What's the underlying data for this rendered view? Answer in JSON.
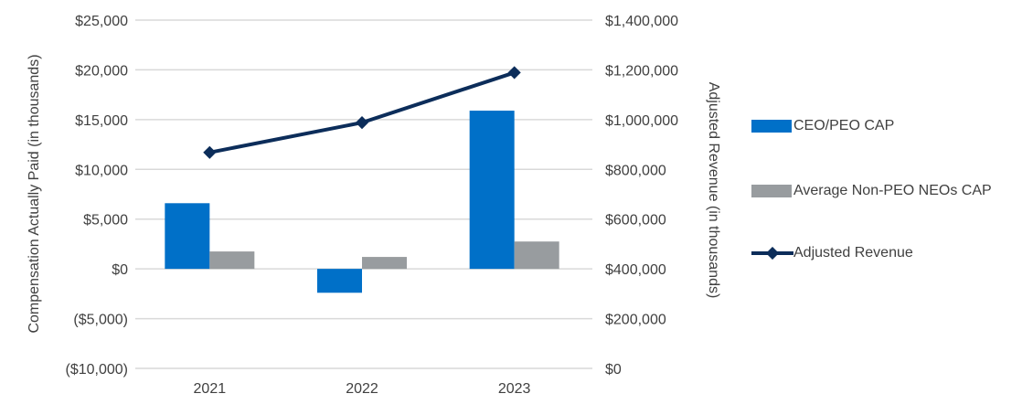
{
  "chart_data": {
    "type": "bar",
    "categories": [
      "2021",
      "2022",
      "2023"
    ],
    "series": [
      {
        "name": "CEO/PEO CAP",
        "kind": "bar",
        "axis": "left",
        "color": "#0070c8",
        "values": [
          6600,
          -2400,
          15900
        ]
      },
      {
        "name": "Average Non-PEO NEOs CAP",
        "kind": "bar",
        "axis": "left",
        "color": "#989c9f",
        "values": [
          1750,
          1200,
          2750
        ]
      },
      {
        "name": "Adjusted Revenue",
        "kind": "line",
        "marker": "diamond",
        "axis": "right",
        "color": "#0c2d5a",
        "values": [
          868000,
          988000,
          1189000
        ]
      }
    ],
    "ylabel": "Compensation Actually Paid (in thousands)",
    "y2label": "Adjusted Revenue (in thousands)",
    "ylim": [
      -10000,
      25000
    ],
    "y2lim": [
      0,
      1400000
    ],
    "yticks": [
      "($10,000)",
      "($5,000)",
      "$0",
      "$5,000",
      "$10,000",
      "$15,000",
      "$20,000",
      "$25,000"
    ],
    "y2ticks": [
      "$0",
      "$200,000",
      "$400,000",
      "$600,000",
      "$800,000",
      "$1,000,000",
      "$1,200,000",
      "$1,400,000"
    ],
    "grid": true,
    "legend_position": "right"
  }
}
